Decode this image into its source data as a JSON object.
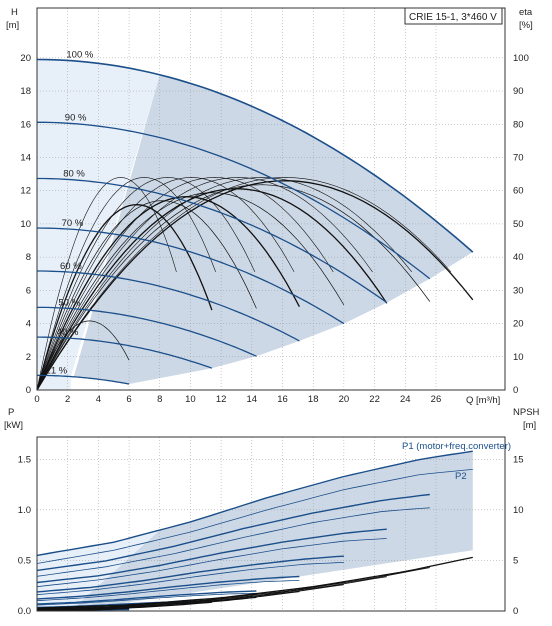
{
  "colors": {
    "curve": "#1b4f8a",
    "region": "#cdd8e6",
    "region_light": "#e7eff9",
    "efficiency": "#111111",
    "grid": "#777777",
    "frame": "#333333"
  },
  "chart_data": [
    {
      "type": "line",
      "name": "head",
      "legend": "CRIE 15-1, 3*460 V",
      "y_label_left": {
        "symbol": "H",
        "unit": "[m]"
      },
      "y_label_right": {
        "symbol": "eta",
        "unit": "[%]"
      },
      "x_label": "Q [m³/h]",
      "xlim": [
        0,
        30.5
      ],
      "ylim": [
        0,
        23
      ],
      "y2lim": [
        0,
        115
      ],
      "x_ticks": [
        0,
        2,
        4,
        6,
        8,
        10,
        12,
        14,
        16,
        18,
        20,
        22,
        24,
        26
      ],
      "y_ticks": [
        0,
        2,
        4,
        6,
        8,
        10,
        12,
        14,
        16,
        18,
        20
      ],
      "y2_ticks": [
        0,
        10,
        20,
        30,
        40,
        50,
        60,
        70,
        80,
        90,
        100
      ],
      "grid": true,
      "speed_curves": [
        {
          "label": "100 %",
          "speed": 1.0,
          "q_max": 28.4,
          "h_max_end": 8.3
        },
        {
          "label": "90 %",
          "speed": 0.9,
          "q_max": 25.6
        },
        {
          "label": "80 %",
          "speed": 0.8,
          "q_max": 22.8
        },
        {
          "label": "70 %",
          "speed": 0.7,
          "q_max": 20.0
        },
        {
          "label": "60 %",
          "speed": 0.6,
          "q_max": 17.1
        },
        {
          "label": "50 %",
          "speed": 0.5,
          "q_max": 14.3
        },
        {
          "label": "40 %",
          "speed": 0.4,
          "q_max": 11.4
        },
        {
          "label": "21 %",
          "speed": 0.21,
          "q_max": 6.0
        }
      ],
      "operating_region": {
        "q_at_100": 8.0,
        "q_at_21": 2.2
      },
      "efficiency_curves": {
        "unit": "%",
        "peak": 63,
        "peak_q_fraction": 0.57
      }
    },
    {
      "type": "line",
      "name": "power",
      "y_label_left": {
        "symbol": "P",
        "unit": "[kW]"
      },
      "y_label_right": {
        "symbol": "NPSH",
        "unit": "[m]"
      },
      "xlim": [
        0,
        30.5
      ],
      "ylim": [
        0,
        1.72
      ],
      "y2lim": [
        0,
        17.2
      ],
      "y_ticks": [
        "0.0",
        "0.5",
        "1.0",
        "1.5"
      ],
      "y2_ticks": [
        0,
        5,
        10,
        15
      ],
      "grid": true,
      "series_labels": {
        "p1": "P1 (motor+freq.converter)",
        "p2": "P2"
      },
      "p1_100": {
        "q": [
          0,
          5,
          10,
          15,
          20,
          25,
          28.4
        ],
        "p": [
          0.55,
          0.68,
          0.88,
          1.12,
          1.33,
          1.5,
          1.58
        ]
      },
      "p2_100": {
        "q": [
          0,
          5,
          10,
          15,
          20,
          25,
          28.4
        ],
        "p": [
          0.47,
          0.6,
          0.78,
          1.0,
          1.2,
          1.35,
          1.4
        ]
      },
      "npsh_100": {
        "q": [
          0,
          6,
          12,
          18,
          24,
          28.4
        ],
        "npsh": [
          0.3,
          0.6,
          1.3,
          2.4,
          3.9,
          5.3
        ]
      }
    }
  ]
}
